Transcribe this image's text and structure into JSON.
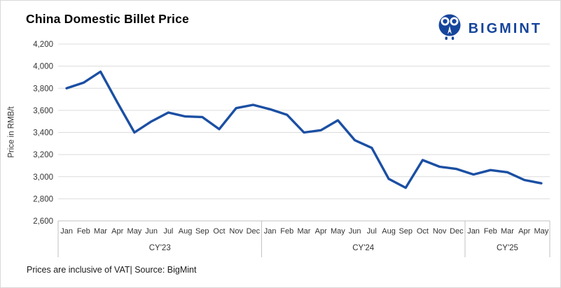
{
  "header": {
    "title": "China Domestic Billet Price"
  },
  "logo": {
    "brand": "BIGMINT",
    "color": "#16459c"
  },
  "chart_data": {
    "type": "line",
    "title": "China Domestic Billet Price",
    "xlabel": "",
    "ylabel": "Price in RMB/t",
    "ylim": [
      2600,
      4200
    ],
    "ytick_step": 200,
    "grid": true,
    "legend_position": "none",
    "line_color": "#1b4fa3",
    "grid_color": "#dcdcdc",
    "axis_color": "#c2c2c2",
    "label_color": "#333333",
    "groups": [
      {
        "label": "CY'23",
        "months": [
          "Jan",
          "Feb",
          "Mar",
          "Apr",
          "May",
          "Jun",
          "Jul",
          "Aug",
          "Sep",
          "Oct",
          "Nov",
          "Dec"
        ]
      },
      {
        "label": "CY'24",
        "months": [
          "Jan",
          "Feb",
          "Mar",
          "Apr",
          "May",
          "Jun",
          "Jul",
          "Aug",
          "Sep",
          "Oct",
          "Nov",
          "Dec"
        ]
      },
      {
        "label": "CY'25",
        "months": [
          "Jan",
          "Feb",
          "Mar",
          "Apr",
          "May"
        ]
      }
    ],
    "series": [
      {
        "name": "China Domestic Billet Price",
        "values": [
          3800,
          3850,
          3950,
          3670,
          3400,
          3500,
          3580,
          3545,
          3540,
          3430,
          3620,
          3650,
          3610,
          3560,
          3400,
          3420,
          3510,
          3330,
          3260,
          2980,
          2900,
          3150,
          3090,
          3070,
          3020,
          3060,
          3040,
          2970,
          2940
        ]
      }
    ]
  },
  "footer": {
    "note": "Prices are inclusive of VAT| Source: BigMint"
  }
}
